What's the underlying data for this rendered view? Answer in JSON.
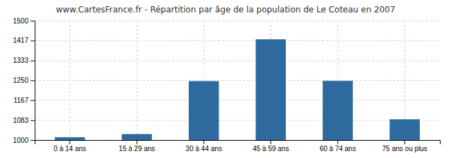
{
  "chart_data": {
    "type": "bar",
    "title": "www.CartesFrance.fr - Répartition par âge de la population de Le Coteau en 2007",
    "categories": [
      "0 à 14 ans",
      "15 à 29 ans",
      "30 à 44 ans",
      "45 à 59 ans",
      "60 à 74 ans",
      "75 ans ou plus"
    ],
    "values": [
      1012,
      1025,
      1247,
      1422,
      1248,
      1087
    ],
    "color": "#2e6a9e",
    "ylim": [
      1000,
      1500
    ],
    "yticks": [
      1000,
      1083,
      1167,
      1250,
      1333,
      1417,
      1500
    ],
    "grid": true
  }
}
